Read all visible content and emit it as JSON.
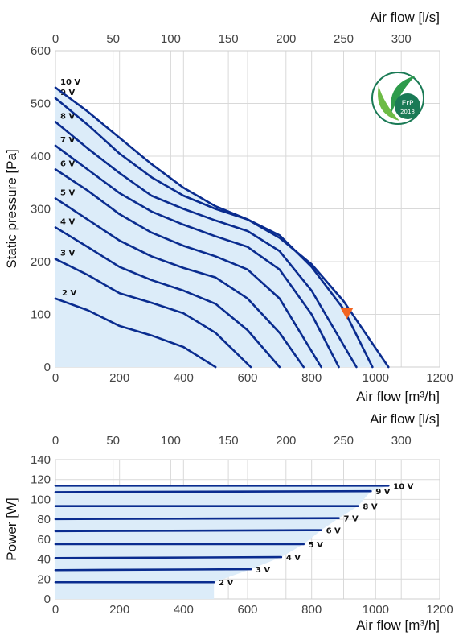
{
  "chart_data": [
    {
      "type": "line",
      "title": "",
      "xlabel": "Air flow [m³/h]",
      "x2label": "Air flow [l/s]",
      "ylabel": "Static pressure [Pa]",
      "xlim": [
        0,
        1200
      ],
      "x2lim": [
        0,
        333.33
      ],
      "ylim": [
        0,
        600
      ],
      "xticks": [
        "0",
        "200",
        "400",
        "600",
        "800",
        "1000",
        "1200"
      ],
      "x2ticks": [
        "0",
        "50",
        "100",
        "150",
        "200",
        "250",
        "300"
      ],
      "yticks": [
        "0",
        "100",
        "200",
        "300",
        "400",
        "500",
        "600"
      ],
      "grid": true,
      "series": [
        {
          "name": "2 V",
          "x": [
            0,
            100,
            200,
            300,
            400,
            500
          ],
          "y": [
            130,
            108,
            78,
            60,
            38,
            0
          ]
        },
        {
          "name": "3 V",
          "x": [
            0,
            100,
            200,
            300,
            400,
            500,
            610
          ],
          "y": [
            205,
            175,
            140,
            122,
            102,
            65,
            0
          ]
        },
        {
          "name": "4 V",
          "x": [
            0,
            100,
            200,
            300,
            400,
            500,
            600,
            700
          ],
          "y": [
            265,
            228,
            190,
            165,
            145,
            120,
            70,
            0
          ]
        },
        {
          "name": "5 V",
          "x": [
            0,
            100,
            200,
            300,
            400,
            500,
            600,
            700,
            775
          ],
          "y": [
            320,
            280,
            240,
            210,
            188,
            170,
            130,
            65,
            0
          ]
        },
        {
          "name": "6 V",
          "x": [
            0,
            100,
            200,
            300,
            400,
            500,
            600,
            700,
            830
          ],
          "y": [
            375,
            335,
            290,
            255,
            230,
            210,
            185,
            130,
            0
          ]
        },
        {
          "name": "7 V",
          "x": [
            0,
            100,
            200,
            300,
            400,
            500,
            600,
            700,
            800,
            885
          ],
          "y": [
            420,
            375,
            330,
            295,
            270,
            248,
            228,
            185,
            100,
            0
          ]
        },
        {
          "name": "8 V",
          "x": [
            0,
            100,
            200,
            300,
            400,
            500,
            600,
            700,
            800,
            940
          ],
          "y": [
            465,
            415,
            368,
            325,
            300,
            278,
            258,
            220,
            145,
            0
          ]
        },
        {
          "name": "9 V",
          "x": [
            0,
            100,
            200,
            300,
            400,
            500,
            600,
            700,
            800,
            900,
            990
          ],
          "y": [
            510,
            460,
            405,
            360,
            325,
            300,
            280,
            250,
            190,
            110,
            0
          ]
        },
        {
          "name": "10 V",
          "x": [
            0,
            100,
            200,
            300,
            400,
            500,
            600,
            700,
            800,
            900,
            1040
          ],
          "y": [
            530,
            485,
            435,
            385,
            340,
            305,
            280,
            245,
            195,
            125,
            0
          ]
        }
      ],
      "marker": {
        "x": 910,
        "y": 100,
        "shape": "triangle-down",
        "color": "#f26522"
      },
      "curve_color": "#0a2c8f",
      "fill_color": "#dcecf9",
      "badge": {
        "text": "ErP",
        "year": "2018",
        "color": "#1a7a55",
        "placement": "top-right"
      }
    },
    {
      "type": "line",
      "title": "",
      "xlabel": "Air flow [m³/h]",
      "x2label": "Air flow [l/s]",
      "ylabel": "Power [W]",
      "xlim": [
        0,
        1200
      ],
      "x2lim": [
        0,
        333.33
      ],
      "ylim": [
        0,
        150
      ],
      "xticks": [
        "0",
        "200",
        "400",
        "600",
        "800",
        "1000",
        "1200"
      ],
      "x2ticks": [
        "0",
        "50",
        "100",
        "150",
        "200",
        "250",
        "300"
      ],
      "yticks": [
        "0",
        "20",
        "40",
        "60",
        "80",
        "100",
        "120",
        "140"
      ],
      "grid": true,
      "series": [
        {
          "name": "2 V",
          "x": [
            0,
            495
          ],
          "y": [
            18,
            18
          ]
        },
        {
          "name": "3 V",
          "x": [
            0,
            610
          ],
          "y": [
            31,
            32
          ]
        },
        {
          "name": "4 V",
          "x": [
            0,
            705
          ],
          "y": [
            44,
            45
          ]
        },
        {
          "name": "5 V",
          "x": [
            0,
            775
          ],
          "y": [
            59,
            59
          ]
        },
        {
          "name": "6 V",
          "x": [
            0,
            830
          ],
          "y": [
            73,
            74
          ]
        },
        {
          "name": "7 V",
          "x": [
            0,
            885
          ],
          "y": [
            86,
            87
          ]
        },
        {
          "name": "8 V",
          "x": [
            0,
            945
          ],
          "y": [
            100,
            100
          ]
        },
        {
          "name": "9 V",
          "x": [
            0,
            985
          ],
          "y": [
            115,
            116
          ]
        },
        {
          "name": "10 V",
          "x": [
            0,
            1040
          ],
          "y": [
            122,
            122
          ]
        }
      ],
      "curve_color": "#0a2c8f",
      "fill_color": "#dcecf9"
    }
  ]
}
